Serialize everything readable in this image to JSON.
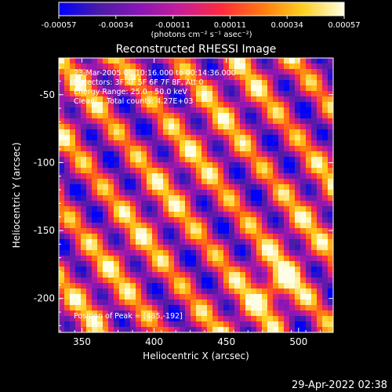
{
  "chart_data": {
    "type": "heatmap",
    "title": "Reconstructed RHESSI Image",
    "xlabel": "Heliocentric X (arcsec)",
    "ylabel": "Heliocentric Y (arcsec)",
    "xlim": [
      334,
      524
    ],
    "ylim": [
      -225,
      -23
    ],
    "xticks": [
      350,
      400,
      450,
      500
    ],
    "yticks": [
      -50,
      -100,
      -150,
      -200
    ],
    "colorbar": {
      "range": [
        -0.00057,
        0.00057
      ],
      "ticks": [
        "-0.00057",
        "-0.00034",
        "-0.00011",
        "0.00011",
        "0.00034",
        "0.00057"
      ],
      "units": "(photons cm⁻² s⁻¹ asec⁻²)",
      "stops": [
        "#0000ff",
        "#4b1ca6",
        "#8a16b4",
        "#c81e96",
        "#ff2a3c",
        "#ff7a10",
        "#ffd020",
        "#ffffe6"
      ]
    },
    "annotations": {
      "time": "23-Mar-2005 00:10:16.000 to 00:14:36.000",
      "detectors": "Detectors: 3F 4F 5F 6F 7F 8F, Att 0",
      "energy": "Energy Range: 25.0 - 50.0 keV",
      "clean": "Clean     Total counts: 4.27E+03",
      "peak": "Position of Peak = [485,-192]"
    },
    "peak": [
      485,
      -192
    ],
    "stripe_angle_deg": -40
  },
  "footer_date": "29-Apr-2022 02:38"
}
